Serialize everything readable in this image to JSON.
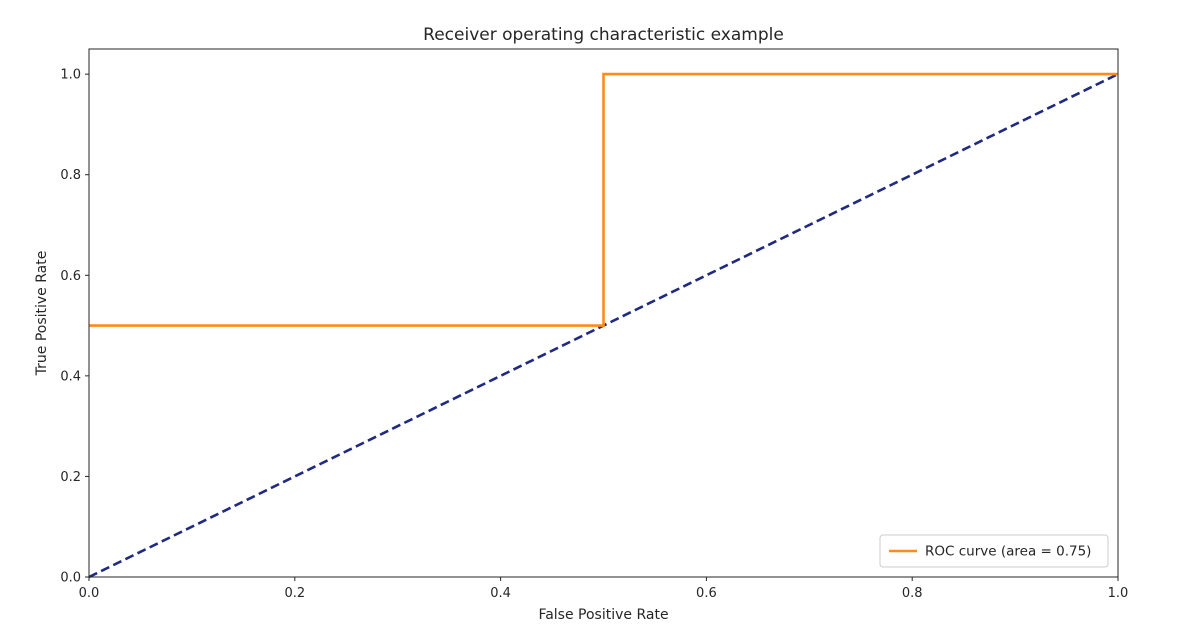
{
  "chart_data": {
    "type": "line",
    "title": "Receiver operating characteristic example",
    "xlabel": "False Positive Rate",
    "ylabel": "True Positive Rate",
    "xlim": [
      0.0,
      1.0
    ],
    "ylim": [
      0.0,
      1.05
    ],
    "xticks": [
      0.0,
      0.2,
      0.4,
      0.6,
      0.8,
      1.0
    ],
    "yticks": [
      0.0,
      0.2,
      0.4,
      0.6,
      0.8,
      1.0
    ],
    "xtick_labels": [
      "0.0",
      "0.2",
      "0.4",
      "0.6",
      "0.8",
      "1.0"
    ],
    "ytick_labels": [
      "0.0",
      "0.2",
      "0.4",
      "0.6",
      "0.8",
      "1.0"
    ],
    "grid": false,
    "legend_position": "lower-right",
    "series": [
      {
        "name": "ROC curve (area = 0.75)",
        "color": "#ff8c1a",
        "style": "solid",
        "x": [
          0.0,
          0.5,
          0.5,
          1.0
        ],
        "y": [
          0.5,
          0.5,
          1.0,
          1.0
        ]
      },
      {
        "name": "",
        "color": "#1f2a80",
        "style": "dashed",
        "x": [
          0.0,
          1.0
        ],
        "y": [
          0.0,
          1.0
        ]
      }
    ]
  }
}
